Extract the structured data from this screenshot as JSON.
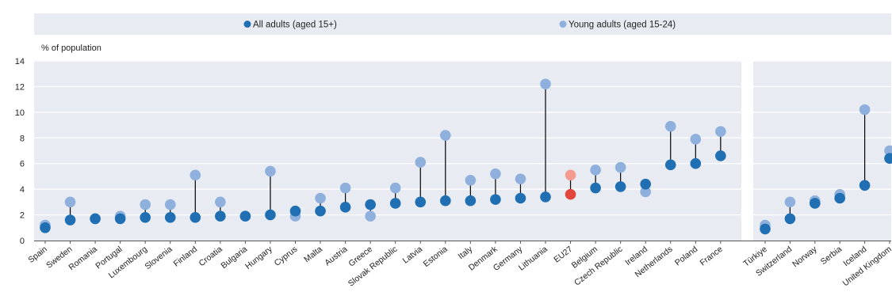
{
  "chart_data": {
    "type": "scatter",
    "ylabel": "% of population",
    "ylim": [
      0,
      14
    ],
    "yticks": [
      0,
      2,
      4,
      6,
      8,
      10,
      12,
      14
    ],
    "grid": true,
    "legend_position": "top",
    "colors": {
      "all_adults": "#1f6fb2",
      "young_adults": "#8fb0dc",
      "eu27_all": "#e2453a",
      "eu27_young": "#f59a8f",
      "band": "#e8ecf2",
      "grid": "#ffffff"
    },
    "groups": [
      {
        "categories": [
          "Spain",
          "Sweden",
          "Romania",
          "Portugal",
          "Luxembourg",
          "Slovenia",
          "Finland",
          "Croatia",
          "Bulgaria",
          "Hungary",
          "Cyprus",
          "Malta",
          "Austria",
          "Greece",
          "Slovak Republic",
          "Latvia",
          "Estonia",
          "Italy",
          "Denmark",
          "Germany",
          "Lithuania",
          "EU27",
          "Belgium",
          "Czech Republic",
          "Ireland",
          "Netherlands",
          "Poland",
          "France"
        ],
        "all_adults": [
          1.0,
          1.6,
          1.7,
          1.7,
          1.8,
          1.8,
          1.8,
          1.9,
          1.9,
          2.0,
          2.3,
          2.3,
          2.6,
          2.8,
          2.9,
          3.0,
          3.1,
          3.1,
          3.2,
          3.3,
          3.4,
          3.6,
          4.1,
          4.2,
          4.4,
          5.9,
          6.0,
          6.6
        ],
        "young_adults": [
          1.2,
          3.0,
          1.7,
          1.9,
          2.8,
          2.8,
          5.1,
          3.0,
          1.9,
          5.4,
          1.9,
          3.3,
          4.1,
          1.9,
          4.1,
          6.1,
          8.2,
          4.7,
          5.2,
          4.8,
          12.2,
          5.1,
          5.5,
          5.7,
          3.8,
          8.9,
          7.9,
          8.5
        ]
      },
      {
        "categories": [
          "Türkiye",
          "Switzerland",
          "Norway",
          "Serbia",
          "Iceland",
          "United Kingdom"
        ],
        "all_adults": [
          0.9,
          1.7,
          2.9,
          3.3,
          4.3,
          6.4
        ],
        "young_adults": [
          1.2,
          3.0,
          3.1,
          3.6,
          10.2,
          7.0
        ]
      }
    ],
    "highlight_category": "EU27",
    "series": [
      {
        "name": "All adults (aged 15+)",
        "key": "all_adults"
      },
      {
        "name": "Young adults (aged 15-24)",
        "key": "young_adults"
      }
    ]
  }
}
